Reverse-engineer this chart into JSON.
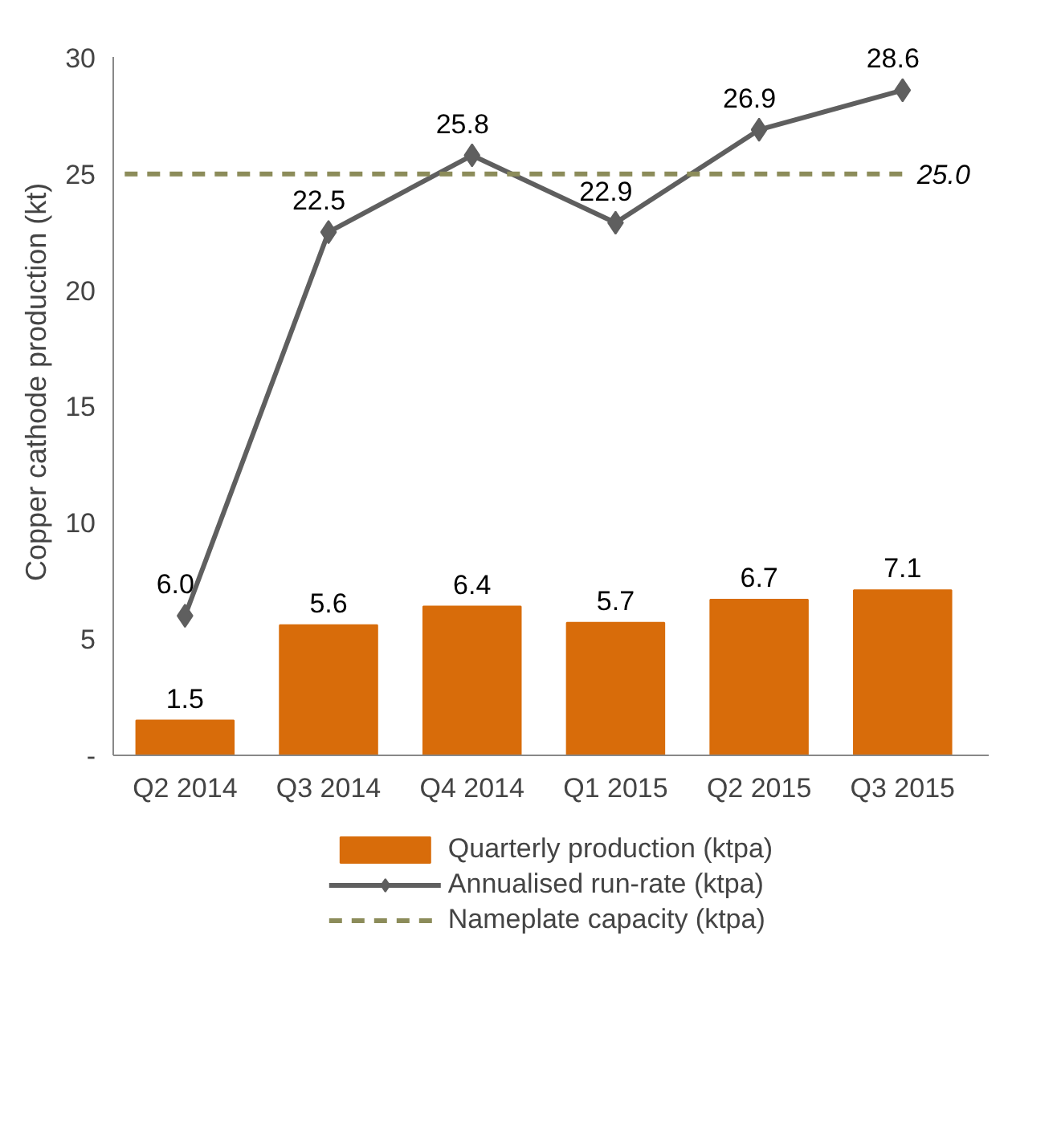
{
  "chart_data": {
    "type": "bar",
    "ylabel": "Copper cathode production (kt)",
    "categories": [
      "Q2 2014",
      "Q3 2014",
      "Q4 2014",
      "Q1 2015",
      "Q2 2015",
      "Q3 2015"
    ],
    "series": [
      {
        "name": "Quarterly production (ktpa)",
        "color": "#d86c0a",
        "values": [
          1.5,
          5.6,
          6.4,
          5.7,
          6.7,
          7.1
        ]
      },
      {
        "name": "Annualised run-rate (ktpa)",
        "type": "line",
        "color": "#5f5f5f",
        "values": [
          6.0,
          22.5,
          25.8,
          22.9,
          26.9,
          28.6
        ],
        "value_labels": [
          "6.0",
          "22.5",
          "25.8",
          "22.9",
          "26.9",
          "28.6"
        ]
      }
    ],
    "ylim": [
      0,
      30
    ],
    "yticks": [
      {
        "value": 0,
        "label": "-"
      },
      5,
      10,
      15,
      20,
      25,
      30
    ],
    "ref_lines": [
      {
        "axis": "y",
        "value": 25,
        "label": "Nameplate capacity (ktpa)",
        "color": "#8c8c5a",
        "line_style": "dashed"
      }
    ],
    "annotations": [
      "25.0"
    ],
    "data_labels": true,
    "marker": "diamond",
    "line_style": "solid",
    "grid": false,
    "legend": "bottom"
  }
}
